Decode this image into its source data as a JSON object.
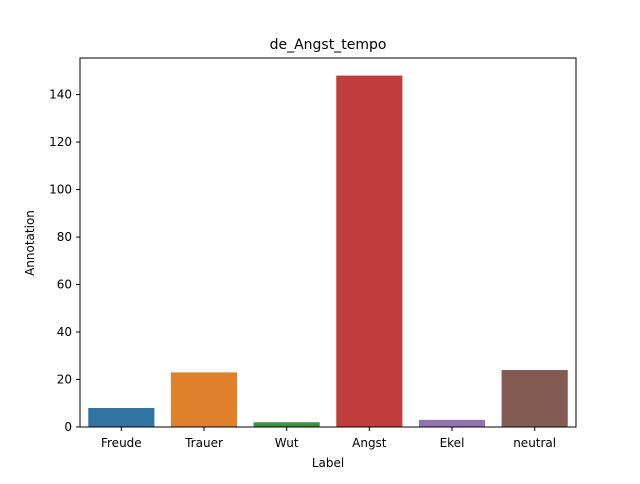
{
  "chart_data": {
    "type": "bar",
    "title": "de_Angst_tempo",
    "xlabel": "Label",
    "ylabel": "Annotation",
    "categories": [
      "Freude",
      "Trauer",
      "Wut",
      "Angst",
      "Ekel",
      "neutral"
    ],
    "values": [
      8,
      23,
      2,
      148,
      3,
      24
    ],
    "colors": [
      "#3274a1",
      "#e1812c",
      "#3a923a",
      "#c03d3e",
      "#9372b2",
      "#845b53"
    ],
    "ylim": [
      0,
      155.4
    ],
    "yticks": [
      0,
      20,
      40,
      60,
      80,
      100,
      120,
      140
    ],
    "grid": false,
    "legend": "none"
  }
}
